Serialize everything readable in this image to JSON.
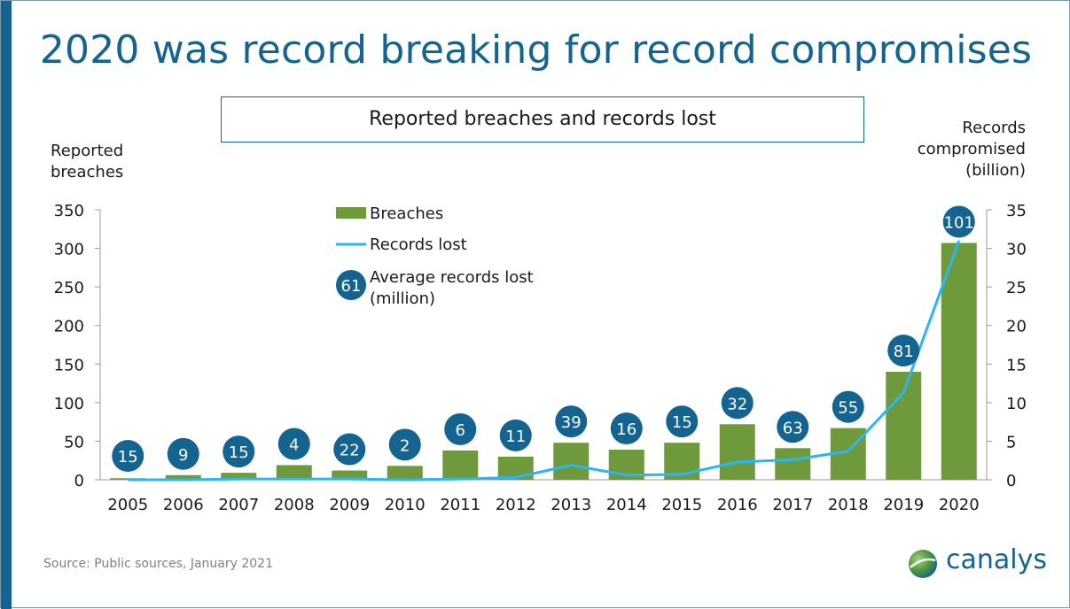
{
  "title": "2020 was record breaking for record compromises",
  "subtitle": "Reported breaches and records lost",
  "left_axis_title": [
    "Reported",
    "breaches"
  ],
  "right_axis_title": [
    "Records",
    "compromised",
    "(billion)"
  ],
  "source": "Source: Public sources, January 2021",
  "logo_text": "canalys",
  "colors": {
    "brand": "#136490",
    "bar": "#6f9a3c",
    "line": "#29b6f6",
    "bubble": "#136490"
  },
  "legend": {
    "breaches": "Breaches",
    "records_lost": "Records lost",
    "bubble_sample": "61",
    "average_line1": "Average records lost",
    "average_line2": "(million)"
  },
  "chart_data": {
    "type": "bar",
    "categories": [
      "2005",
      "2006",
      "2007",
      "2008",
      "2009",
      "2010",
      "2011",
      "2012",
      "2013",
      "2014",
      "2015",
      "2016",
      "2017",
      "2018",
      "2019",
      "2020"
    ],
    "series": [
      {
        "name": "Breaches",
        "type": "bar",
        "axis": "left",
        "values": [
          2,
          6,
          9,
          19,
          12,
          18,
          38,
          30,
          48,
          39,
          48,
          72,
          41,
          67,
          140,
          307
        ]
      },
      {
        "name": "Records lost",
        "type": "line",
        "axis": "right",
        "values": [
          0,
          0,
          0.1,
          0.1,
          0.1,
          0,
          0.1,
          0.3,
          1.9,
          0.6,
          0.7,
          2.3,
          2.6,
          3.7,
          11.3,
          31
        ]
      },
      {
        "name": "Average records lost (million)",
        "type": "label",
        "values": [
          15,
          9,
          15,
          4,
          22,
          2,
          6,
          11,
          39,
          16,
          15,
          32,
          63,
          55,
          81,
          101
        ]
      }
    ],
    "left_axis": {
      "ticks": [
        "350",
        "300",
        "250",
        "200",
        "150",
        "100",
        "50",
        "0"
      ],
      "ylim": [
        0,
        350
      ]
    },
    "right_axis": {
      "ticks": [
        "35",
        "30",
        "25",
        "20",
        "15",
        "10",
        "5",
        "0"
      ],
      "ylim": [
        0,
        35
      ]
    },
    "grid": false,
    "legend_position": "top-center"
  }
}
